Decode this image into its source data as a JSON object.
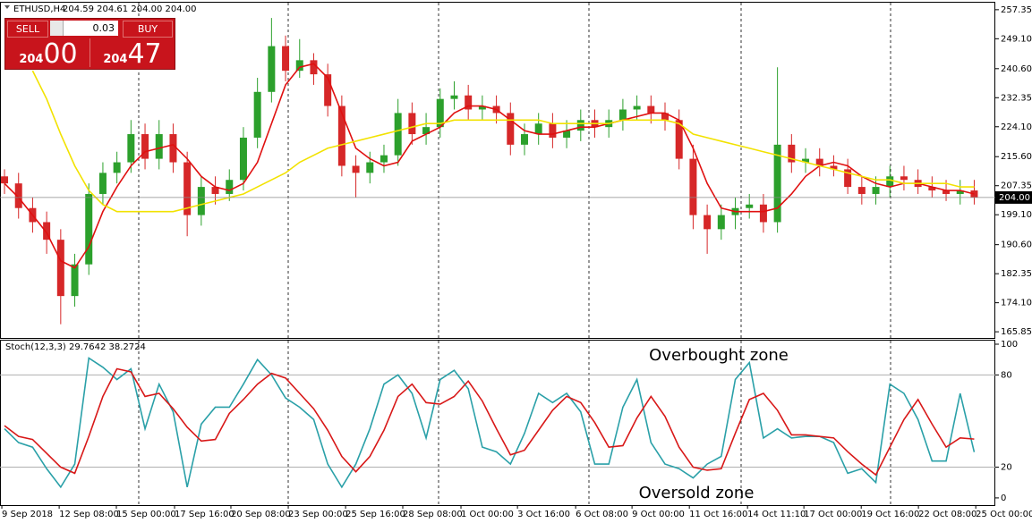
{
  "trade_panel": {
    "sell": "SELL",
    "buy": "BUY",
    "lot": "0.03",
    "sell_price": {
      "big": "204",
      "pips": "00"
    },
    "buy_price": {
      "big": "204",
      "pips": "47"
    }
  },
  "chart_data": [
    {
      "type": "candlestick",
      "title": "ETHUSD,H4",
      "subtitle": "204.59 204.61 204.00 204.00",
      "up_color": "#2ca02c",
      "down_color": "#d62728",
      "open": [
        210,
        208,
        201,
        197,
        192,
        176,
        185,
        205,
        211,
        214,
        222,
        215,
        222,
        214,
        199,
        207,
        205,
        209,
        221,
        234,
        247,
        240,
        243,
        239,
        230,
        213,
        211,
        214,
        216,
        228,
        222,
        224,
        232,
        233,
        229,
        230,
        228,
        219,
        222,
        225,
        221,
        223,
        226,
        224,
        226,
        229,
        230,
        228,
        226,
        215,
        199,
        195,
        199,
        201,
        202,
        197,
        219,
        214,
        215,
        213,
        212,
        207,
        205,
        207,
        210,
        209,
        207,
        206,
        205,
        206
      ],
      "high": [
        212,
        211,
        204,
        200,
        195,
        188,
        208,
        214,
        217,
        226,
        225,
        226,
        225,
        217,
        210,
        210,
        212,
        224,
        238,
        255,
        250,
        249,
        245,
        242,
        233,
        216,
        217,
        219,
        232,
        231,
        228,
        235,
        237,
        236,
        233,
        233,
        231,
        225,
        228,
        228,
        226,
        229,
        229,
        229,
        232,
        233,
        233,
        231,
        229,
        219,
        202,
        202,
        204,
        205,
        205,
        241,
        222,
        218,
        218,
        216,
        215,
        210,
        210,
        213,
        213,
        212,
        210,
        209,
        209,
        209
      ],
      "low": [
        205,
        198,
        194,
        188,
        168,
        173,
        182,
        202,
        208,
        211,
        212,
        212,
        211,
        193,
        196,
        202,
        203,
        206,
        218,
        231,
        237,
        238,
        236,
        227,
        210,
        204,
        208,
        211,
        213,
        219,
        219,
        221,
        229,
        226,
        226,
        225,
        216,
        216,
        219,
        218,
        218,
        220,
        221,
        221,
        223,
        226,
        225,
        223,
        212,
        195,
        188,
        192,
        195,
        198,
        194,
        194,
        211,
        211,
        210,
        210,
        205,
        202,
        202,
        204,
        206,
        205,
        204,
        203,
        202,
        202
      ],
      "close": [
        208,
        201,
        197,
        192,
        176,
        185,
        205,
        211,
        214,
        222,
        215,
        222,
        214,
        199,
        207,
        205,
        209,
        221,
        234,
        247,
        240,
        243,
        239,
        230,
        213,
        211,
        214,
        216,
        228,
        222,
        224,
        232,
        233,
        229,
        230,
        228,
        219,
        222,
        225,
        221,
        223,
        226,
        224,
        226,
        229,
        230,
        228,
        226,
        215,
        199,
        195,
        199,
        201,
        202,
        197,
        219,
        214,
        215,
        213,
        212,
        207,
        205,
        207,
        210,
        209,
        207,
        206,
        205,
        206,
        204
      ],
      "series": [
        {
          "color": "#e01010",
          "values": [
            208,
            204,
            199,
            194,
            186,
            184,
            190,
            200,
            207,
            213,
            217,
            218,
            219,
            215,
            210,
            207,
            206,
            208,
            214,
            225,
            236,
            241,
            242,
            238,
            228,
            218,
            215,
            213,
            214,
            220,
            222,
            224,
            228,
            230,
            230,
            229,
            226,
            223,
            222,
            222,
            223,
            224,
            224,
            225,
            226,
            227,
            228,
            228,
            226,
            218,
            208,
            201,
            200,
            200,
            200,
            201,
            205,
            210,
            213,
            214,
            213,
            210,
            208,
            207,
            208,
            208,
            207,
            206,
            206,
            205
          ]
        },
        {
          "color": "#f2e200",
          "values": [
            null,
            null,
            240,
            232,
            222,
            213,
            206,
            202,
            200,
            200,
            200,
            200,
            200,
            201,
            202,
            203,
            204,
            205,
            207,
            209,
            211,
            214,
            216,
            218,
            219,
            220,
            221,
            222,
            223,
            224,
            225,
            225,
            226,
            226,
            226,
            226,
            226,
            226,
            226,
            225,
            225,
            225,
            225,
            225,
            226,
            226,
            226,
            226,
            225,
            222,
            221,
            220,
            219,
            218,
            217,
            216,
            215,
            214,
            213,
            212,
            211,
            210,
            209,
            209,
            208,
            208,
            208,
            208,
            207,
            207
          ]
        }
      ],
      "xlim": [
        -0.32,
        70.5
      ],
      "ylim": [
        164.1,
        259.6
      ],
      "yticks": [
        257.35,
        {
          "value": 249.1,
          "label": "249.10"
        },
        {
          "value": 240.6,
          "label": "240.60"
        },
        232.35,
        {
          "value": 224.1,
          "label": "224.10"
        },
        {
          "value": 215.6,
          "label": "215.60"
        },
        207.35,
        {
          "value": 199.1,
          "label": "199.10"
        },
        {
          "value": 190.6,
          "label": "190.60"
        },
        182.35,
        {
          "value": 174.1,
          "label": "174.10"
        },
        165.85
      ],
      "current_price": {
        "value": 204,
        "label": "204.00"
      }
    },
    {
      "type": "line",
      "title": "Stoch(12,3,3) 29.7642 38.2724",
      "series": [
        {
          "color": "#2aa0a8",
          "values": [
            45,
            36,
            33,
            19,
            7,
            22,
            91,
            85,
            77,
            84,
            45,
            74,
            56,
            7,
            48,
            59,
            59,
            74,
            90,
            80,
            65,
            59,
            51,
            22,
            7,
            22,
            45,
            74,
            80,
            68,
            39,
            77,
            83,
            71,
            33,
            30,
            22,
            42,
            68,
            62,
            68,
            56,
            22,
            22,
            59,
            77,
            36,
            22,
            19,
            13,
            22,
            27,
            77,
            88,
            39,
            45,
            39,
            40,
            40,
            36,
            16,
            19,
            10,
            74,
            68,
            51,
            24,
            24,
            68,
            29.7642
          ]
        },
        {
          "color": "#d81818",
          "values": [
            47,
            40,
            38,
            29,
            20,
            16,
            40,
            66,
            84,
            82,
            66,
            68,
            58,
            46,
            37,
            38,
            55,
            64,
            74,
            81,
            78,
            68,
            58,
            44,
            27,
            17,
            27,
            44,
            66,
            74,
            62,
            61,
            66,
            76,
            63,
            45,
            28,
            31,
            44,
            57,
            66,
            62,
            49,
            33,
            34,
            52,
            66,
            53,
            33,
            20,
            18,
            19,
            42,
            64,
            68,
            57,
            41,
            41,
            40,
            39,
            30,
            22,
            15,
            33,
            51,
            64,
            48,
            33,
            39,
            38.2724
          ]
        }
      ],
      "xlim": [
        -0.32,
        70.5
      ],
      "ylim": [
        -4.7,
        102.9
      ],
      "yticks": [
        100,
        80,
        20,
        0
      ],
      "levels": [
        80,
        20
      ],
      "annotations": [
        "Overbought zone",
        "Oversold zone"
      ],
      "xticks": [
        {
          "value": -0.19,
          "label": "9 Sep 2018"
        },
        {
          "value": 3.89,
          "label": "12 Sep 08:00"
        },
        {
          "value": 7.96,
          "label": "15 Sep 00:00"
        },
        {
          "value": 12.1,
          "label": "17 Sep 16:00"
        },
        {
          "value": 16.11,
          "label": "20 Sep 08:00"
        },
        {
          "value": 20.19,
          "label": "23 Sep 00:00"
        },
        {
          "value": 24.27,
          "label": "25 Sep 16:00"
        },
        {
          "value": 28.34,
          "label": "28 Sep 08:00"
        },
        {
          "value": 32.48,
          "label": "1 Oct 00:00"
        },
        {
          "value": 36.5,
          "label": "3 Oct 16:00"
        },
        {
          "value": 40.64,
          "label": "6 Oct 08:00"
        },
        {
          "value": 44.65,
          "label": "9 Oct 00:00"
        },
        {
          "value": 48.73,
          "label": "11 Oct 16:00"
        },
        {
          "value": 52.87,
          "label": "14 Oct 11:10"
        },
        {
          "value": 56.88,
          "label": "17 Oct 00:00"
        },
        {
          "value": 60.96,
          "label": "19 Oct 16:00"
        },
        {
          "value": 65.03,
          "label": "22 Oct 08:00"
        },
        {
          "value": 69.11,
          "label": "25 Oct 00:00"
        }
      ]
    }
  ]
}
